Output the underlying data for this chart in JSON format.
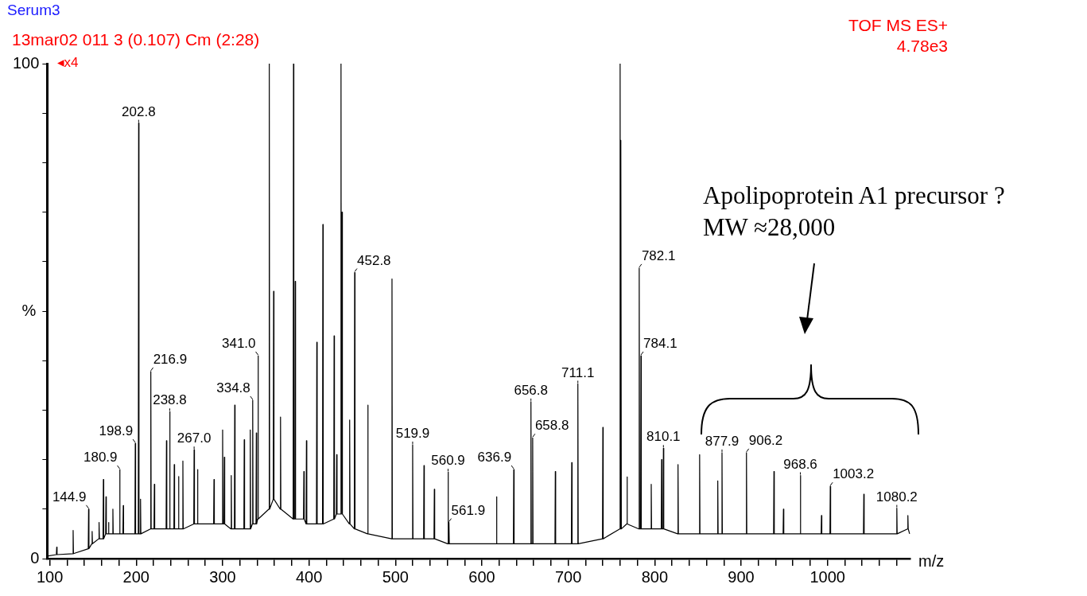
{
  "chart_data": {
    "type": "line",
    "title": "Serum3",
    "subtitle": "13mar02 011 3 (0.107) Cm (2:28)",
    "xlabel": "m/z",
    "ylabel": "%",
    "xlim": [
      97,
      1096
    ],
    "ylim": [
      0,
      100
    ],
    "xticks": [
      100,
      {
        "value": 120,
        "label": null
      },
      {
        "value": 140,
        "label": null
      },
      {
        "value": 160,
        "label": null
      },
      {
        "value": 180,
        "label": null
      },
      200,
      {
        "value": 220,
        "label": null
      },
      {
        "value": 240,
        "label": null
      },
      {
        "value": 260,
        "label": null
      },
      {
        "value": 280,
        "label": null
      },
      300,
      {
        "value": 320,
        "label": null
      },
      {
        "value": 340,
        "label": null
      },
      {
        "value": 360,
        "label": null
      },
      {
        "value": 380,
        "label": null
      },
      400,
      {
        "value": 420,
        "label": null
      },
      {
        "value": 440,
        "label": null
      },
      {
        "value": 460,
        "label": null
      },
      {
        "value": 480,
        "label": null
      },
      500,
      {
        "value": 520,
        "label": null
      },
      {
        "value": 540,
        "label": null
      },
      {
        "value": 560,
        "label": null
      },
      {
        "value": 580,
        "label": null
      },
      600,
      {
        "value": 620,
        "label": null
      },
      {
        "value": 640,
        "label": null
      },
      {
        "value": 660,
        "label": null
      },
      {
        "value": 680,
        "label": null
      },
      700,
      {
        "value": 720,
        "label": null
      },
      {
        "value": 740,
        "label": null
      },
      {
        "value": 760,
        "label": null
      },
      {
        "value": 780,
        "label": null
      },
      800,
      {
        "value": 820,
        "label": null
      },
      {
        "value": 840,
        "label": null
      },
      {
        "value": 860,
        "label": null
      },
      {
        "value": 880,
        "label": null
      },
      900,
      {
        "value": 920,
        "label": null
      },
      {
        "value": 940,
        "label": null
      },
      {
        "value": 960,
        "label": null
      },
      {
        "value": 980,
        "label": null
      },
      1000,
      {
        "value": 1020,
        "label": null
      },
      {
        "value": 1040,
        "label": null
      },
      {
        "value": 1060,
        "label": null
      },
      {
        "value": 1080,
        "label": null
      }
    ],
    "yticks": [
      0,
      {
        "value": 10,
        "label": null
      },
      {
        "value": 20,
        "label": null
      },
      {
        "value": 30,
        "label": null
      },
      {
        "value": 40,
        "label": null
      },
      {
        "value": 50,
        "label": null
      },
      {
        "value": 60,
        "label": null
      },
      {
        "value": 70,
        "label": null
      },
      {
        "value": 80,
        "label": null
      },
      {
        "value": 90,
        "label": null
      },
      100
    ],
    "series": [
      {
        "color": "#000000",
        "x": [
          97,
          107.6,
          108,
          108.4,
          126.6,
          127,
          127.4,
          144.5,
          144.9,
          145.3,
          148.6,
          149,
          149.4,
          156.6,
          157,
          157.4,
          161.6,
          162,
          162.4,
          164.6,
          165,
          165.4,
          167.6,
          168,
          168.4,
          172.6,
          173,
          173.4,
          180.5,
          180.9,
          181.3,
          184.6,
          185,
          185.4,
          198.5,
          198.9,
          199.3,
          202.4,
          202.8,
          203.2,
          204.6,
          205,
          205.4,
          216.5,
          216.9,
          217.3,
          220.6,
          221,
          221.4,
          234.6,
          235,
          235.4,
          238.4,
          238.8,
          239.2,
          243.6,
          244,
          244.4,
          248.6,
          249,
          249.4,
          253.6,
          254,
          254.4,
          266.6,
          267,
          267.4,
          270.6,
          271,
          271.4,
          289.6,
          290,
          290.4,
          299.6,
          300,
          300.4,
          301.6,
          302,
          302.4,
          309.6,
          310,
          310.4,
          313.6,
          314,
          314.4,
          324.6,
          325,
          325.4,
          331.6,
          332,
          332.4,
          334.4,
          334.8,
          335.2,
          338.6,
          339,
          339.4,
          340.6,
          341,
          341.4,
          353.6,
          354,
          354.4,
          358.6,
          359,
          359.4,
          366.6,
          367,
          367.4,
          381.6,
          382,
          382.4,
          383.6,
          384,
          384.4,
          393.6,
          394,
          394.4,
          396.6,
          397,
          397.4,
          408.6,
          409,
          409.4,
          415.6,
          416,
          416.4,
          428.6,
          429,
          429.4,
          431.6,
          432,
          432.4,
          436.6,
          437,
          437.4,
          437.8,
          438.2,
          438.6,
          446.6,
          447,
          447.4,
          452.4,
          452.8,
          453.2,
          467.6,
          468,
          468.4,
          495.6,
          496,
          496.4,
          519.5,
          519.9,
          520.3,
          532.6,
          533,
          533.4,
          544.6,
          545,
          545.4,
          560.5,
          560.9,
          561.3,
          561.5,
          561.9,
          562.3,
          616.6,
          617,
          617.4,
          636.5,
          636.9,
          637.3,
          656.4,
          656.8,
          657.2,
          658.4,
          658.8,
          659.2,
          684.6,
          685,
          685.4,
          703.6,
          704,
          704.4,
          710.7,
          711.1,
          711.5,
          739.6,
          740,
          740.4,
          759.6,
          760,
          760.4,
          760.6,
          761,
          761.4,
          767.6,
          768,
          768.4,
          781.7,
          782.1,
          782.5,
          783.7,
          784.1,
          784.5,
          795.6,
          796,
          796.4,
          807.6,
          808,
          808.4,
          809.7,
          810.1,
          810.5,
          826.6,
          827,
          827.4,
          851.6,
          852,
          852.4,
          872.6,
          873,
          873.4,
          877.5,
          877.9,
          878.3,
          905.8,
          906.2,
          906.6,
          937.6,
          938,
          938.4,
          948.6,
          949,
          949.4,
          968.2,
          968.6,
          969,
          992.6,
          993,
          993.4,
          1002.8,
          1003.2,
          1003.6,
          1041.6,
          1042,
          1042.4,
          1079.8,
          1080.2,
          1080.6,
          1092.6,
          1093,
          1093.4,
          1095
        ],
        "values": [
          0.5,
          0.8,
          2.3,
          0.8,
          1,
          5.7,
          1,
          2,
          10,
          2,
          3,
          5.5,
          3,
          4,
          7.3,
          4,
          4,
          16,
          4,
          5,
          12.5,
          5,
          5,
          7.3,
          5,
          5,
          10,
          5,
          5,
          18,
          5,
          5,
          10.7,
          5,
          5,
          23.3,
          5,
          5,
          88,
          5,
          5,
          12,
          5,
          6,
          37.8,
          6,
          6,
          15,
          6,
          6,
          23.8,
          6,
          6,
          29.7,
          6,
          6,
          19,
          6,
          6,
          16.6,
          6,
          6,
          19.7,
          6,
          7,
          22,
          7,
          7,
          18,
          7,
          7,
          16,
          7,
          7,
          26,
          7,
          7,
          20.5,
          7,
          6,
          16.8,
          6,
          6,
          31,
          6,
          6,
          24,
          6,
          6,
          26,
          6,
          7,
          32,
          7,
          7,
          25.4,
          7,
          8,
          41,
          8,
          10,
          100,
          10,
          12,
          54,
          12,
          10,
          28.6,
          10,
          8,
          100,
          8,
          8,
          56,
          8,
          8,
          17.6,
          8,
          7,
          23.8,
          7,
          7,
          43.7,
          7,
          7,
          67.5,
          7,
          8,
          45,
          8,
          9,
          21,
          9,
          9,
          100,
          9,
          9,
          70,
          9,
          7,
          28,
          7,
          6,
          57.8,
          6,
          5,
          31,
          5,
          4,
          56.5,
          4,
          4,
          23,
          4,
          4,
          18.8,
          4,
          4,
          14,
          4,
          3,
          17.5,
          3,
          3,
          7.3,
          3,
          3,
          12.5,
          3,
          3,
          18,
          3,
          3,
          31.7,
          3,
          3,
          24.4,
          3,
          3,
          17.6,
          3,
          3,
          19.4,
          3,
          3,
          35.3,
          3,
          4,
          26.5,
          4,
          6,
          100,
          6,
          6,
          84.5,
          6,
          7,
          16.5,
          7,
          6,
          58.7,
          6,
          6,
          41,
          6,
          6,
          15,
          6,
          6,
          20,
          6,
          6,
          22.3,
          6,
          5,
          19,
          5,
          5,
          21,
          5,
          5,
          15.7,
          5,
          5,
          21.4,
          5,
          5,
          21.4,
          5,
          5,
          17.6,
          5,
          5,
          10,
          5,
          5,
          16.8,
          5,
          5,
          8.7,
          5,
          5,
          14.6,
          5,
          5,
          13,
          5,
          5,
          10.2,
          5,
          6,
          8.7,
          6,
          5
        ]
      }
    ],
    "annotations": [
      "◂x4",
      "TOF MS ES+",
      "4.78e3",
      "Apolipoprotein A1 precursor ?",
      "MW ≈28,000",
      {
        "text": "144.9",
        "x": 144.9,
        "y": 10
      },
      {
        "text": "180.9",
        "x": 180.9,
        "y": 18
      },
      {
        "text": "198.9",
        "x": 198.9,
        "y": 23.3
      },
      {
        "text": "202.8",
        "x": 202.8,
        "y": 88
      },
      {
        "text": "216.9",
        "x": 216.9,
        "y": 37.8
      },
      {
        "text": "238.8",
        "x": 238.8,
        "y": 29.7
      },
      {
        "text": "267.0",
        "x": 267,
        "y": 22
      },
      {
        "text": "334.8",
        "x": 334.8,
        "y": 32
      },
      {
        "text": "341.0",
        "x": 341,
        "y": 41
      },
      {
        "text": "452.8",
        "x": 452.8,
        "y": 57.8
      },
      {
        "text": "519.9",
        "x": 519.9,
        "y": 23
      },
      {
        "text": "560.9",
        "x": 560.9,
        "y": 17.5
      },
      {
        "text": "561.9",
        "x": 561.9,
        "y": 7.3
      },
      {
        "text": "636.9",
        "x": 636.9,
        "y": 18
      },
      {
        "text": "656.8",
        "x": 656.8,
        "y": 31.7
      },
      {
        "text": "658.8",
        "x": 658.8,
        "y": 24.4
      },
      {
        "text": "711.1",
        "x": 711.1,
        "y": 35.3
      },
      {
        "text": "782.1",
        "x": 782.1,
        "y": 58.7
      },
      {
        "text": "784.1",
        "x": 784.1,
        "y": 41
      },
      {
        "text": "810.1",
        "x": 810.1,
        "y": 22.3
      },
      {
        "text": "877.9",
        "x": 877.9,
        "y": 21.4
      },
      {
        "text": "906.2",
        "x": 906.2,
        "y": 21.4
      },
      {
        "text": "968.6",
        "x": 968.6,
        "y": 16.8
      },
      {
        "text": "1003.2",
        "x": 1003.2,
        "y": 14.6
      },
      {
        "text": "1080.2",
        "x": 1080.2,
        "y": 10.2
      }
    ]
  }
}
